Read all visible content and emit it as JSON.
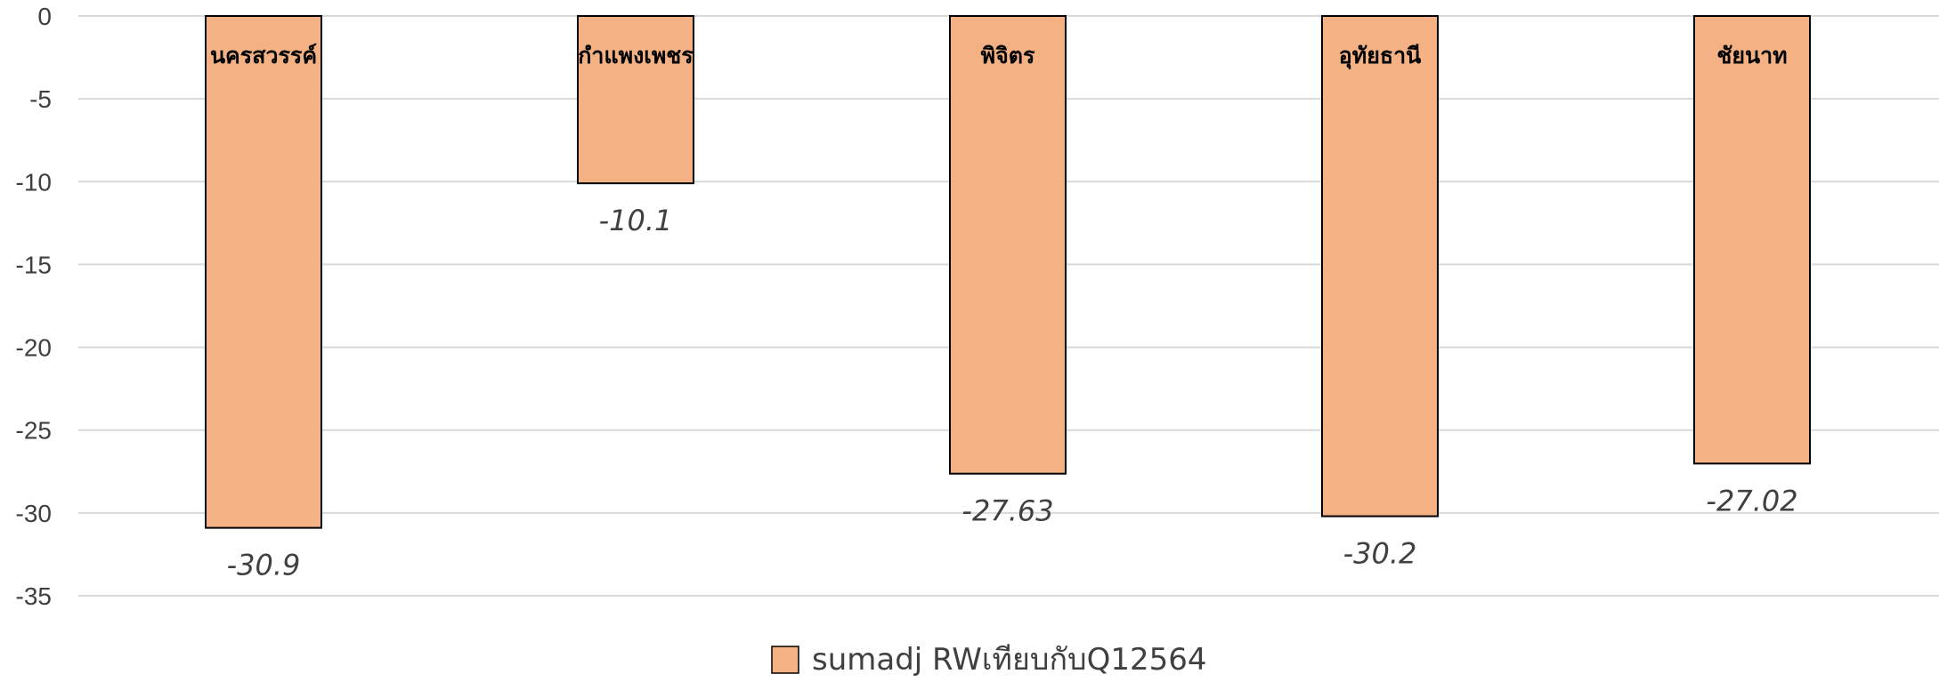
{
  "chart_data": {
    "type": "bar",
    "categories": [
      "นครสวรรค์",
      "กำแพงเพชร",
      "พิจิตร",
      "อุทัยธานี",
      "ชัยนาท"
    ],
    "series": [
      {
        "name": "sumadj RWเทียบกับQ12564",
        "values": [
          -30.9,
          -10.1,
          -27.63,
          -30.2,
          -27.02
        ],
        "data_labels": [
          "-30.9",
          "-10.1",
          "-27.63",
          "-30.2",
          "-27.02"
        ]
      }
    ],
    "yticks": [
      "0",
      "-5",
      "-10",
      "-15",
      "-20",
      "-25",
      "-30",
      "-35"
    ],
    "ylim": [
      -35,
      0
    ],
    "grid": true,
    "legend_position": "bottom-center",
    "bar_color": "#F4B183",
    "bar_border": "#000000",
    "grid_color": "#D9D9D9"
  }
}
